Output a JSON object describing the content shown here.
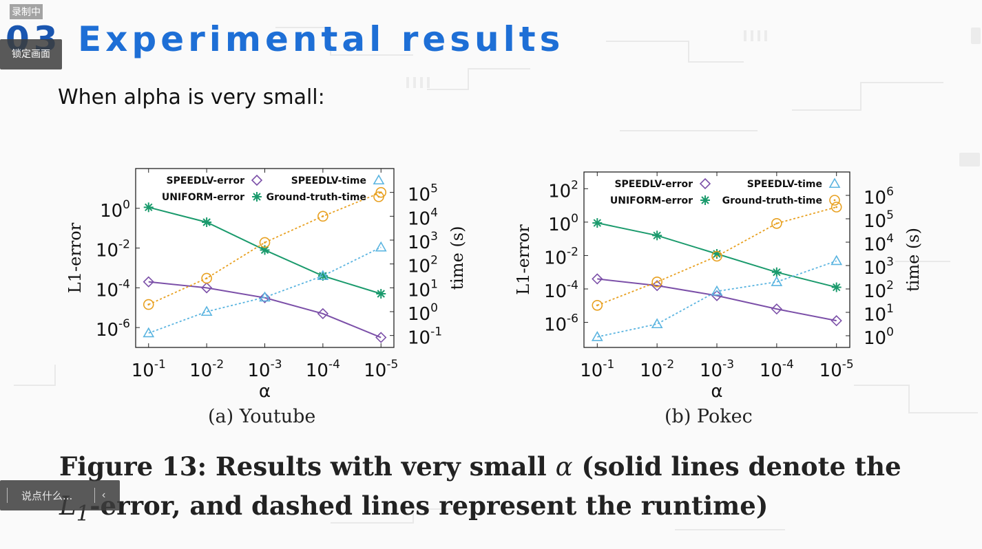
{
  "overlay": {
    "recording_label": "录制中",
    "lock_label": "锁定画面",
    "comment_placeholder": "说点什么...",
    "collapse_icon": "chevron-left-icon"
  },
  "slide": {
    "number": "03",
    "title": "Experimental results",
    "subtitle": "When alpha is very small:"
  },
  "figure": {
    "caption_pre": "Figure 13: Results with very small ",
    "caption_alpha": "α",
    "caption_mid": " (solid lines denote the ",
    "caption_L": "L",
    "caption_sub": "1",
    "caption_post": "-error, and dashed lines represent the runtime)"
  },
  "colors": {
    "speedlv": "#7b4fa8",
    "uniform": "#1a9a6c",
    "speedlv_time": "#5ab4e0",
    "ground_truth_time": "#e8a020",
    "title_blue": "#1e6fd6"
  },
  "chart_data": [
    {
      "type": "line",
      "caption": "(a)  Youtube",
      "xlabel": "α",
      "ylabel": "L1-error",
      "y2label": "time (s)",
      "categories": [
        "-1",
        "-2",
        "-3",
        "-4",
        "-5"
      ],
      "yscale": "log",
      "ylim_exp": [
        -7,
        2
      ],
      "yticks_exp": [
        -6,
        -4,
        -2,
        0
      ],
      "y2scale": "log",
      "y2lim_exp": [
        -1.5,
        6
      ],
      "y2ticks_exp": [
        -1,
        0,
        1,
        2,
        3,
        4,
        5
      ],
      "legend_placement": "top",
      "series": [
        {
          "name": "SPEEDLV-error",
          "axis": "left",
          "marker": "diamond",
          "dash": false,
          "color_key": "speedlv",
          "values_exp": [
            -3.7,
            -4.0,
            -4.5,
            -5.3,
            -6.5
          ]
        },
        {
          "name": "UNIFORM-error",
          "axis": "left",
          "marker": "star",
          "dash": false,
          "color_key": "uniform",
          "values_exp": [
            0.05,
            -0.7,
            -2.1,
            -3.4,
            -4.3
          ]
        },
        {
          "name": "SPEEDLV-time",
          "axis": "right",
          "marker": "triangle",
          "dash": true,
          "color_key": "speedlv_time",
          "values_exp": [
            -0.9,
            0.0,
            0.6,
            1.5,
            2.7
          ]
        },
        {
          "name": "Ground-truth-time",
          "axis": "right",
          "marker": "circle",
          "dash": true,
          "color_key": "ground_truth_time",
          "values_exp": [
            0.3,
            1.4,
            2.9,
            4.0,
            5.0
          ]
        }
      ]
    },
    {
      "type": "line",
      "caption": "(b)  Pokec",
      "xlabel": "α",
      "ylabel": "L1-error",
      "y2label": "time (s)",
      "categories": [
        "-1",
        "-2",
        "-3",
        "-4",
        "-5"
      ],
      "yscale": "log",
      "ylim_exp": [
        -7.5,
        3
      ],
      "yticks_exp": [
        -6,
        -4,
        -2,
        0,
        2
      ],
      "y2scale": "log",
      "y2lim_exp": [
        -0.5,
        7
      ],
      "y2ticks_exp": [
        0,
        1,
        2,
        3,
        4,
        5,
        6
      ],
      "legend_placement": "top",
      "series": [
        {
          "name": "SPEEDLV-error",
          "axis": "left",
          "marker": "diamond",
          "dash": false,
          "color_key": "speedlv",
          "values_exp": [
            -3.4,
            -3.8,
            -4.4,
            -5.2,
            -5.9
          ]
        },
        {
          "name": "UNIFORM-error",
          "axis": "left",
          "marker": "star",
          "dash": false,
          "color_key": "uniform",
          "values_exp": [
            -0.05,
            -0.8,
            -1.9,
            -3.0,
            -3.9
          ]
        },
        {
          "name": "SPEEDLV-time",
          "axis": "right",
          "marker": "triangle",
          "dash": true,
          "color_key": "speedlv_time",
          "values_exp": [
            -0.05,
            0.5,
            1.9,
            2.3,
            3.2
          ]
        },
        {
          "name": "Ground-truth-time",
          "axis": "right",
          "marker": "circle",
          "dash": true,
          "color_key": "ground_truth_time",
          "values_exp": [
            1.3,
            2.3,
            3.4,
            4.8,
            5.5
          ]
        }
      ]
    }
  ]
}
